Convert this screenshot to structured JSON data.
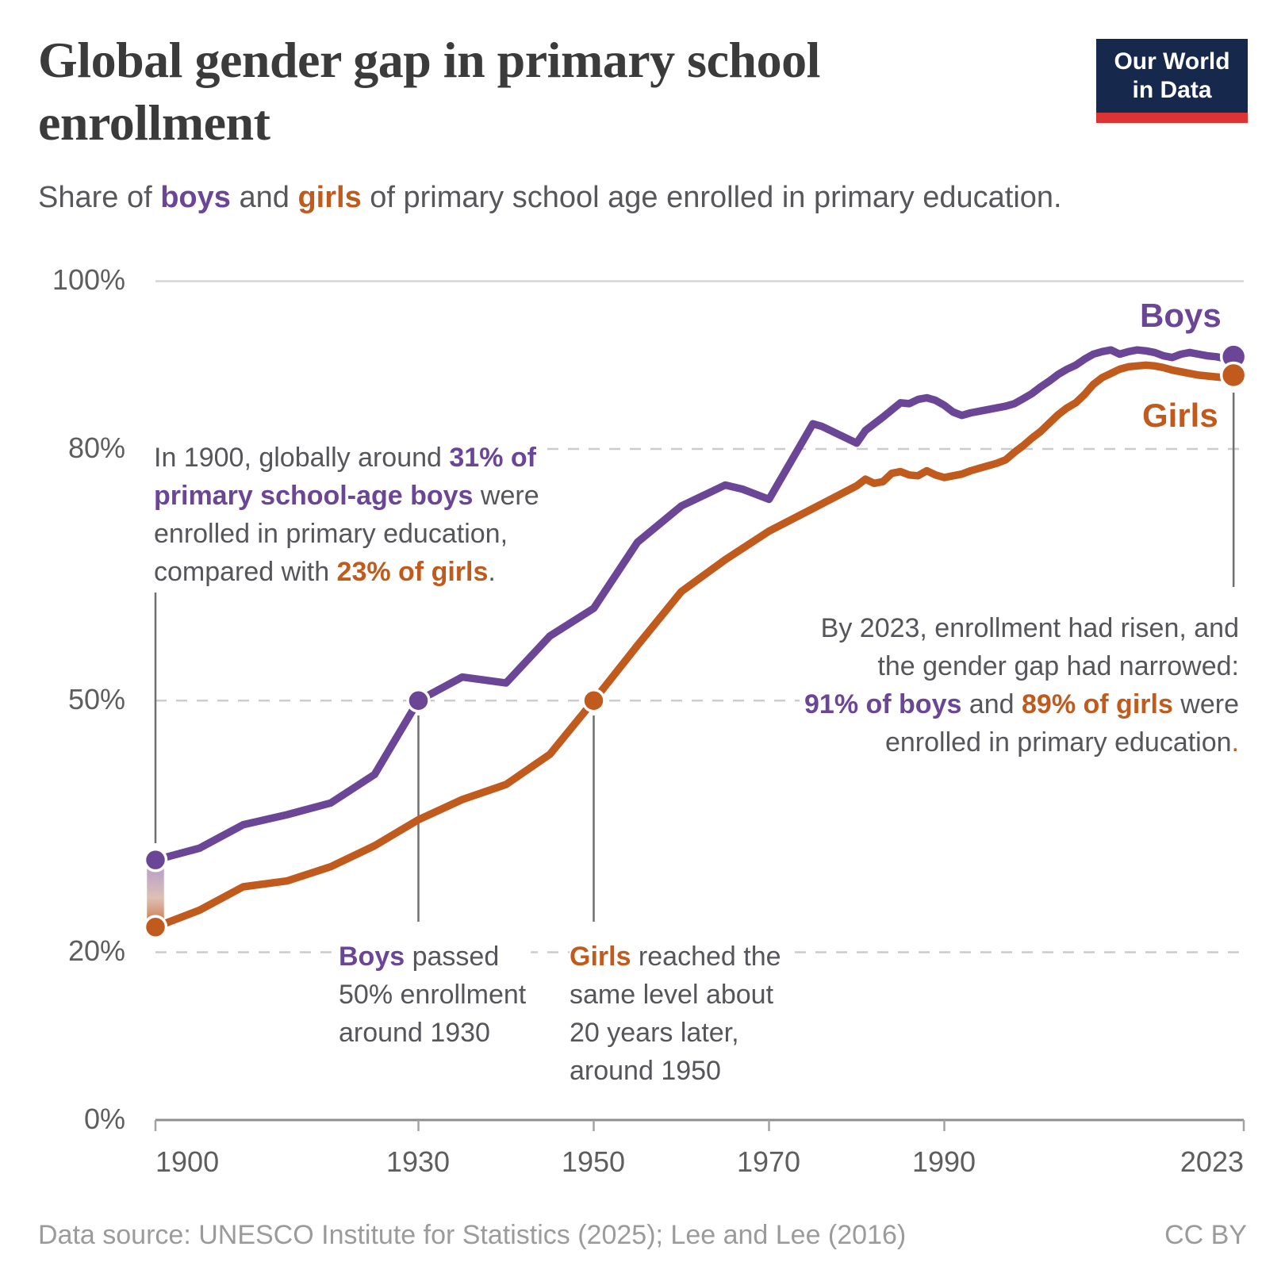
{
  "header": {
    "title": "Global gender gap in primary school\nenrollment",
    "subtitle": {
      "pre": "Share of ",
      "boys": "boys",
      "mid": " and ",
      "girls": "girls",
      "post": " of primary school age enrolled in primary education."
    },
    "logo": {
      "line1": "Our World",
      "line2": "in Data"
    }
  },
  "chart_data": {
    "type": "line",
    "title": "Global gender gap in primary school enrollment",
    "xlabel": "",
    "ylabel": "",
    "x_axis": {
      "range": [
        1900,
        2023
      ],
      "ticks": [
        1900,
        1930,
        1950,
        1970,
        1990,
        2023
      ],
      "tick_labels": [
        "1900",
        "1930",
        "1950",
        "1970",
        "1990",
        "2023"
      ]
    },
    "y_axis": {
      "range": [
        0,
        100
      ],
      "ticks": [
        100,
        80,
        50,
        20,
        0
      ],
      "tick_labels": [
        "100%",
        "80%",
        "50%",
        "20%",
        "0%"
      ],
      "gridlines": "top solid, others dashed"
    },
    "legend_position": "end-of-line labels",
    "series": [
      {
        "name": "Boys",
        "color": "#6b4596",
        "points": [
          [
            1900,
            31
          ],
          [
            1905,
            32.4
          ],
          [
            1910,
            35.2
          ],
          [
            1915,
            36.4
          ],
          [
            1920,
            37.8
          ],
          [
            1925,
            41.2
          ],
          [
            1930,
            50
          ],
          [
            1935,
            52.8
          ],
          [
            1940,
            52.1
          ],
          [
            1945,
            57.7
          ],
          [
            1950,
            61
          ],
          [
            1955,
            68.9
          ],
          [
            1960,
            73.2
          ],
          [
            1965,
            75.7
          ],
          [
            1967,
            75.2
          ],
          [
            1970,
            74
          ],
          [
            1975,
            83
          ],
          [
            1976,
            82.7
          ],
          [
            1980,
            80.7
          ],
          [
            1981,
            82.2
          ],
          [
            1983,
            83.8
          ],
          [
            1985,
            85.5
          ],
          [
            1986,
            85.4
          ],
          [
            1987,
            85.9
          ],
          [
            1988,
            86.1
          ],
          [
            1989,
            85.8
          ],
          [
            1990,
            85.2
          ],
          [
            1991,
            84.4
          ],
          [
            1992,
            84
          ],
          [
            1993,
            84.3
          ],
          [
            1994,
            84.5
          ],
          [
            1995,
            84.7
          ],
          [
            1996,
            84.9
          ],
          [
            1997,
            85.1
          ],
          [
            1998,
            85.4
          ],
          [
            1999,
            86
          ],
          [
            2000,
            86.6
          ],
          [
            2001,
            87.4
          ],
          [
            2002,
            88.1
          ],
          [
            2003,
            88.9
          ],
          [
            2004,
            89.5
          ],
          [
            2005,
            90
          ],
          [
            2006,
            90.7
          ],
          [
            2007,
            91.3
          ],
          [
            2008,
            91.6
          ],
          [
            2009,
            91.8
          ],
          [
            2010,
            91.3
          ],
          [
            2011,
            91.6
          ],
          [
            2012,
            91.8
          ],
          [
            2013,
            91.7
          ],
          [
            2014,
            91.5
          ],
          [
            2015,
            91.1
          ],
          [
            2016,
            90.9
          ],
          [
            2017,
            91.3
          ],
          [
            2018,
            91.5
          ],
          [
            2019,
            91.3
          ],
          [
            2020,
            91.1
          ],
          [
            2021,
            91
          ],
          [
            2022,
            90.8
          ],
          [
            2023,
            91
          ]
        ]
      },
      {
        "name": "Girls",
        "color": "#c05a1d",
        "points": [
          [
            1900,
            23
          ],
          [
            1905,
            25
          ],
          [
            1910,
            27.8
          ],
          [
            1915,
            28.5
          ],
          [
            1920,
            30.2
          ],
          [
            1925,
            32.7
          ],
          [
            1930,
            35.8
          ],
          [
            1935,
            38.2
          ],
          [
            1940,
            40
          ],
          [
            1945,
            43.6
          ],
          [
            1950,
            50
          ],
          [
            1955,
            56.6
          ],
          [
            1960,
            63
          ],
          [
            1965,
            66.8
          ],
          [
            1970,
            70.2
          ],
          [
            1975,
            72.9
          ],
          [
            1980,
            75.6
          ],
          [
            1981,
            76.4
          ],
          [
            1982,
            75.9
          ],
          [
            1983,
            76.1
          ],
          [
            1984,
            77.1
          ],
          [
            1985,
            77.3
          ],
          [
            1986,
            76.9
          ],
          [
            1987,
            76.8
          ],
          [
            1988,
            77.4
          ],
          [
            1989,
            76.9
          ],
          [
            1990,
            76.6
          ],
          [
            1991,
            76.8
          ],
          [
            1992,
            77
          ],
          [
            1993,
            77.4
          ],
          [
            1994,
            77.7
          ],
          [
            1995,
            78
          ],
          [
            1996,
            78.3
          ],
          [
            1997,
            78.7
          ],
          [
            1998,
            79.6
          ],
          [
            1999,
            80.4
          ],
          [
            2000,
            81.3
          ],
          [
            2001,
            82.1
          ],
          [
            2002,
            83.1
          ],
          [
            2003,
            84.1
          ],
          [
            2004,
            84.9
          ],
          [
            2005,
            85.5
          ],
          [
            2006,
            86.5
          ],
          [
            2007,
            87.7
          ],
          [
            2008,
            88.5
          ],
          [
            2009,
            89
          ],
          [
            2010,
            89.5
          ],
          [
            2011,
            89.8
          ],
          [
            2012,
            89.9
          ],
          [
            2013,
            90
          ],
          [
            2014,
            89.9
          ],
          [
            2015,
            89.7
          ],
          [
            2016,
            89.4
          ],
          [
            2017,
            89.2
          ],
          [
            2018,
            89
          ],
          [
            2019,
            88.8
          ],
          [
            2020,
            88.7
          ],
          [
            2021,
            88.6
          ],
          [
            2022,
            88.5
          ],
          [
            2023,
            88.8
          ]
        ]
      }
    ],
    "markers": [
      {
        "name": "boys-1900-dot",
        "series": 0,
        "year": 1900,
        "value": 31,
        "r": 13.5
      },
      {
        "name": "girls-1900-dot",
        "series": 1,
        "year": 1900,
        "value": 23,
        "r": 13.5
      },
      {
        "name": "boys-50pct-dot",
        "series": 0,
        "year": 1930,
        "value": 50,
        "r": 13.5
      },
      {
        "name": "girls-50pct-dot",
        "series": 1,
        "year": 1950,
        "value": 50,
        "r": 13.5
      },
      {
        "name": "boys-end-dot",
        "series": 0,
        "year": 2023,
        "value": 91,
        "r": 15.5
      },
      {
        "name": "girls-end-dot",
        "series": 1,
        "year": 2023,
        "value": 88.8,
        "r": 15.5
      }
    ],
    "end_labels": {
      "boys": "Boys",
      "girls": "Girls"
    }
  },
  "annotations": {
    "in1900": {
      "seg1": "In 1900, globally around ",
      "seg2": "31% of\nprimary school-age boys",
      "seg3": " were\nenrolled in primary education,\ncompared with ",
      "seg4": "23% of girls",
      "seg5": "."
    },
    "boys1930": {
      "seg1": "Boys",
      "seg2": " passed\n50% enrollment\naround 1930"
    },
    "girls1950": {
      "seg1": "Girls",
      "seg2": " reached the\nsame level about\n20 years later,\naround 1950"
    },
    "by2023": {
      "seg1": "By 2023, enrollment had risen, and\nthe gender gap had narrowed:\n",
      "seg2": "91% of boys",
      "seg3": " and ",
      "seg4": "89% of girls",
      "seg5": " were\nenrolled in primary education",
      "seg6": "."
    }
  },
  "footer": {
    "source": "Data source: UNESCO Institute for Statistics (2025); Lee and Lee (2016)",
    "license": "CC BY"
  }
}
